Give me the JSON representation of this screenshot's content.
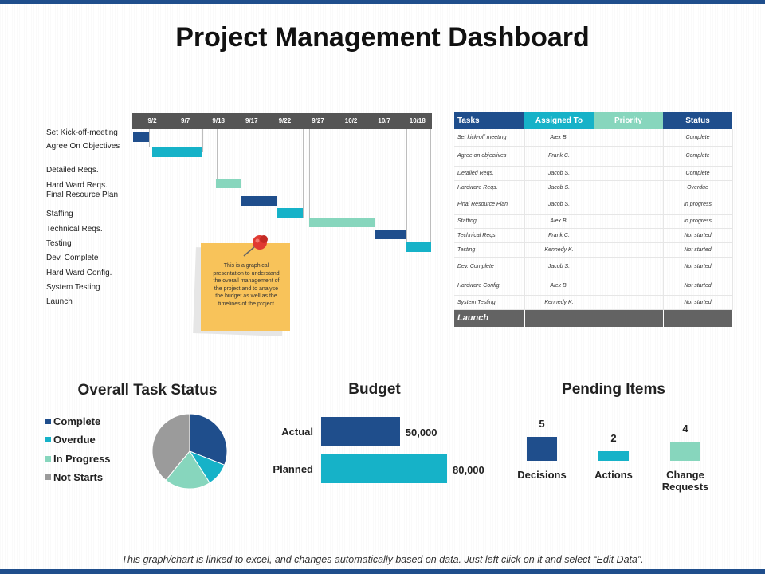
{
  "title": "Project Management Dashboard",
  "colors": {
    "navy": "#1f4e8c",
    "cyan": "#16b2c8",
    "mint": "#87d6bd",
    "gray": "#9b9b9b",
    "dark": "#555555"
  },
  "gantt": {
    "dates": [
      "9/2",
      "9/7",
      "9/18",
      "9/17",
      "9/22",
      "9/27",
      "10/2",
      "10/7",
      "10/18"
    ],
    "tasks": [
      {
        "label": "Set Kick-off-meeting",
        "color": "navy"
      },
      {
        "label": "Agree On Objectives",
        "color": "cyan"
      },
      {
        "label": "Detailed Reqs.",
        "color": "mint"
      },
      {
        "label": "Hard Ward Reqs.",
        "color": "navy"
      },
      {
        "label": "Final Resource Plan",
        "color": "cyan"
      },
      {
        "label": "Staffing",
        "color": "mint"
      },
      {
        "label": "Technical Reqs.",
        "color": "navy"
      },
      {
        "label": "Testing",
        "color": "cyan"
      },
      {
        "label": "Dev. Complete",
        "color": null
      },
      {
        "label": "Hard Ward Config.",
        "color": null
      },
      {
        "label": "System Testing",
        "color": null
      },
      {
        "label": "Launch",
        "color": null
      }
    ]
  },
  "note": {
    "text": "This is a graphical presentation to understand the overall management of the project and to analyse the budget as well as the timelines of the project"
  },
  "table": {
    "headers": [
      "Tasks",
      "Assigned To",
      "Priority",
      "Status"
    ],
    "rows": [
      {
        "task": "Set kick-off meeting",
        "assigned": "Alex B.",
        "priority": "",
        "status": "Complete"
      },
      {
        "task": "Agree on objectives",
        "assigned": "Frank C.",
        "priority": "",
        "status": "Complete"
      },
      {
        "task": "Detailed Reqs.",
        "assigned": "Jacob S.",
        "priority": "",
        "status": "Complete"
      },
      {
        "task": "Hardware Reqs.",
        "assigned": "Jacob S.",
        "priority": "",
        "status": "Overdue"
      },
      {
        "task": "Final Resource Plan",
        "assigned": "Jacob S.",
        "priority": "",
        "status": "In progress"
      },
      {
        "task": "Staffing",
        "assigned": "Alex B.",
        "priority": "",
        "status": "In progress"
      },
      {
        "task": "Technical Reqs.",
        "assigned": "Frank C.",
        "priority": "",
        "status": "Not started"
      },
      {
        "task": "Testing",
        "assigned": "Kennedy K.",
        "priority": "",
        "status": "Not started"
      },
      {
        "task": "Dev. Complete",
        "assigned": "Jacob S.",
        "priority": "",
        "status": "Not started"
      },
      {
        "task": "Hardware Config.",
        "assigned": "Alex B.",
        "priority": "",
        "status": "Not started"
      },
      {
        "task": "System Testing",
        "assigned": "Kennedy K.",
        "priority": "",
        "status": "Not started"
      }
    ],
    "launch": "Launch"
  },
  "task_status": {
    "title": "Overall Task Status",
    "legend": [
      "Complete",
      "Overdue",
      "In Progress",
      "Not Starts"
    ]
  },
  "budget": {
    "title": "Budget"
  },
  "pending": {
    "title": "Pending Items"
  },
  "chart_data": [
    {
      "type": "pie",
      "title": "Overall Task Status",
      "labels": [
        "Complete",
        "Overdue",
        "In Progress",
        "Not Starts"
      ],
      "values": [
        31,
        10,
        20,
        39
      ],
      "colors": [
        "#1f4e8c",
        "#16b2c8",
        "#87d6bd",
        "#9b9b9b"
      ]
    },
    {
      "type": "bar",
      "orientation": "horizontal",
      "title": "Budget",
      "categories": [
        "Actual",
        "Planned"
      ],
      "values": [
        50000,
        80000
      ],
      "value_labels": [
        "50,000",
        "80,000"
      ],
      "colors": [
        "#1f4e8c",
        "#16b2c8"
      ]
    },
    {
      "type": "bar",
      "title": "Pending Items",
      "categories": [
        "Decisions",
        "Actions",
        "Change Requests"
      ],
      "values": [
        5,
        2,
        4
      ],
      "colors": [
        "#1f4e8c",
        "#16b2c8",
        "#87d6bd"
      ]
    }
  ],
  "footer": "This graph/chart is linked to excel, and changes automatically based on data. Just left click on it and select “Edit Data”."
}
